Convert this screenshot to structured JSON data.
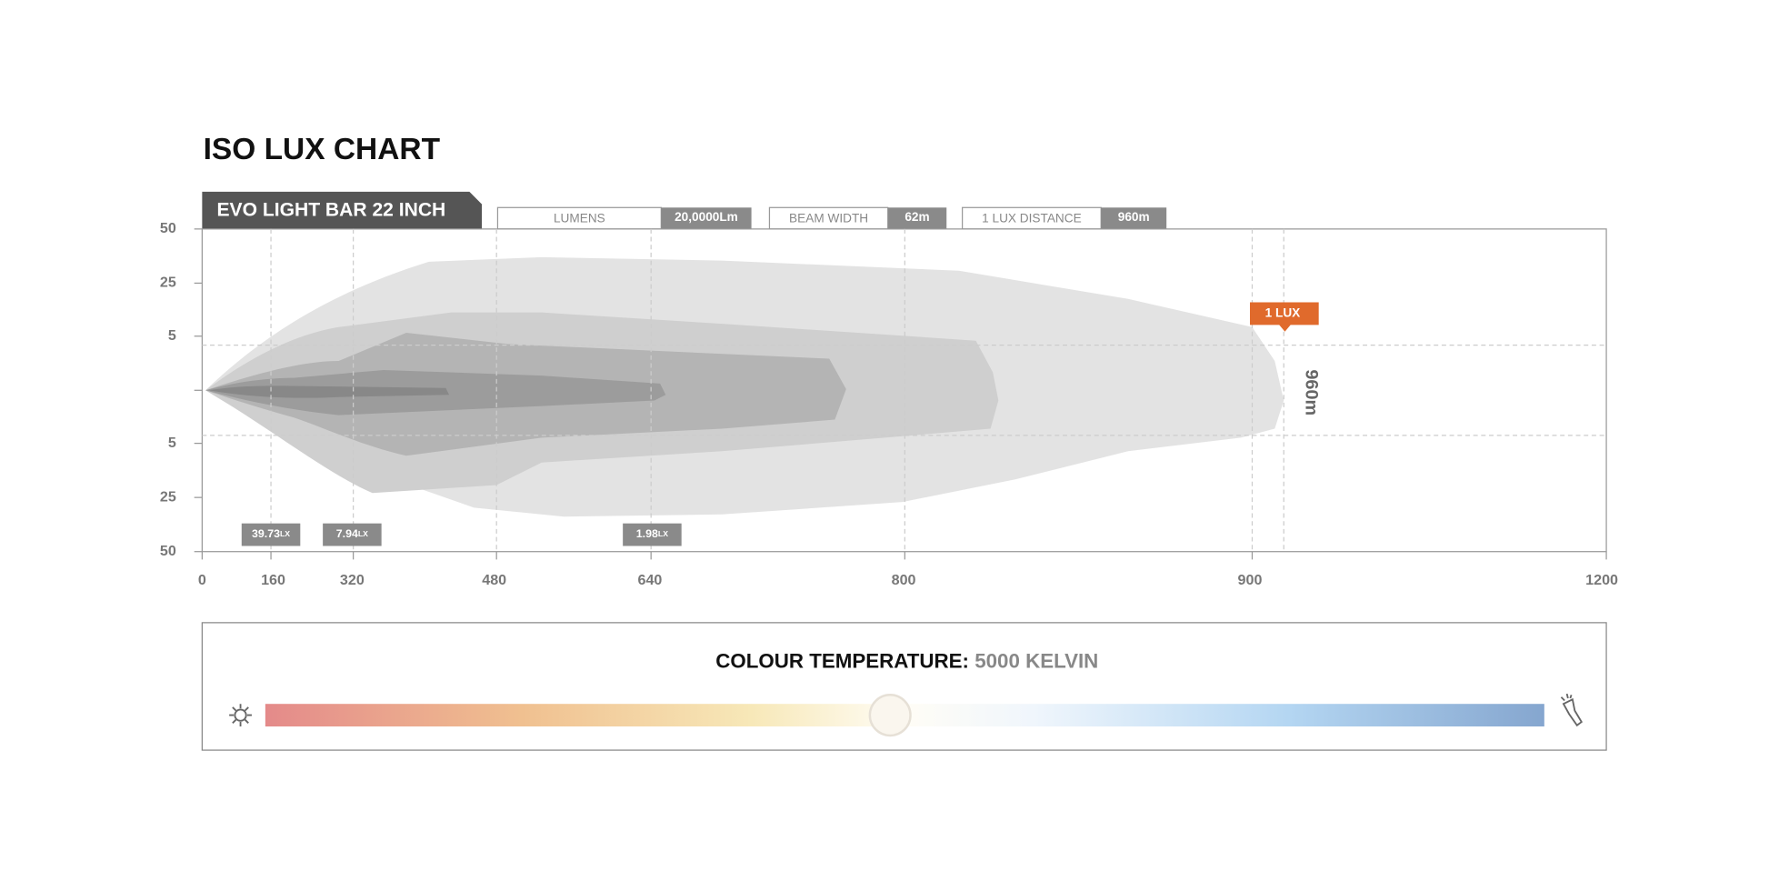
{
  "title": "ISO LUX CHART",
  "product": "EVO LIGHT BAR 22 INCH",
  "specs": [
    {
      "label": "LUMENS",
      "value": "20,0000Lm"
    },
    {
      "label": "BEAM WIDTH",
      "value": "62m"
    },
    {
      "label": "1 LUX DISTANCE",
      "value": "960m"
    }
  ],
  "y_axis": [
    "50",
    "25",
    "5",
    "5",
    "25",
    "50"
  ],
  "x_axis": [
    "0",
    "160",
    "320",
    "480",
    "640",
    "800",
    "900",
    "1200"
  ],
  "lux_markers": [
    {
      "value": "39.73",
      "unit": "LX"
    },
    {
      "value": "7.94",
      "unit": "LX"
    },
    {
      "value": "1.98",
      "unit": "LX"
    }
  ],
  "one_lux": {
    "label": "1 LUX",
    "distance": "960m"
  },
  "colour_temperature": {
    "label": "COLOUR TEMPERATURE:",
    "value": "5000 KELVIN"
  }
}
